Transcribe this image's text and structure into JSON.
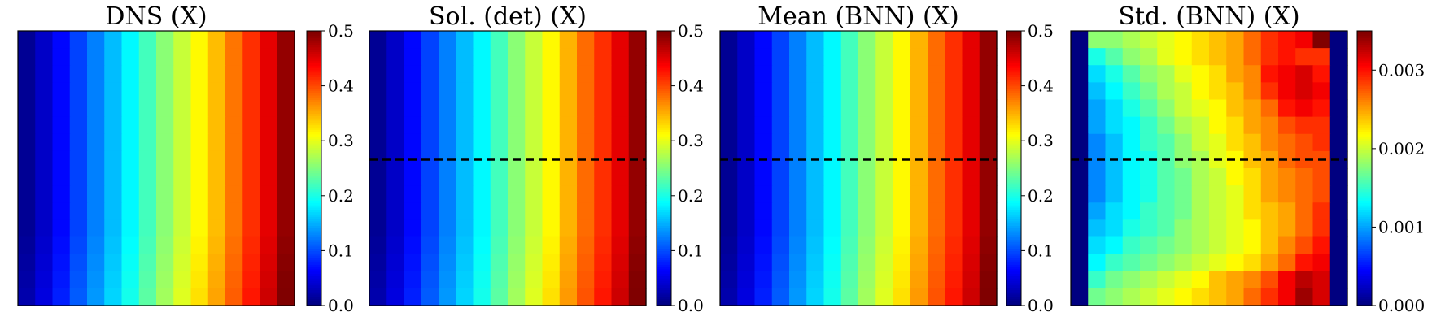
{
  "chart_data": [
    {
      "type": "heatmap",
      "title": "DNS (X)",
      "grid": false,
      "rows": 16,
      "cols": 16,
      "x_values": [
        0.01,
        0.035,
        0.065,
        0.095,
        0.125,
        0.155,
        0.185,
        0.22,
        0.255,
        0.285,
        0.315,
        0.345,
        0.38,
        0.415,
        0.45,
        0.49
      ],
      "row_offsets": [
        0,
        0,
        0,
        0,
        0,
        0,
        0,
        0,
        0,
        0,
        0,
        0,
        0.003,
        0.006,
        0.009,
        0.012
      ],
      "dashed_line_row": null,
      "colorbar": {
        "vmin": 0.0,
        "vmax": 0.5,
        "ticks": [
          "0.0",
          "0.1",
          "0.2",
          "0.3",
          "0.4",
          "0.5"
        ],
        "tick_values": [
          0,
          0.1,
          0.2,
          0.3,
          0.4,
          0.5
        ]
      }
    },
    {
      "type": "heatmap",
      "title": "Sol. (det) (X)",
      "grid": false,
      "rows": 16,
      "cols": 16,
      "x_values": [
        0.01,
        0.035,
        0.065,
        0.095,
        0.125,
        0.155,
        0.185,
        0.22,
        0.255,
        0.285,
        0.315,
        0.35,
        0.385,
        0.415,
        0.45,
        0.49
      ],
      "row_offsets": [
        0,
        0,
        0,
        0,
        0,
        0,
        0,
        0,
        0,
        0,
        0,
        0,
        0.003,
        0.006,
        0.009,
        0.012
      ],
      "dashed_line_row": 7.5,
      "colorbar": {
        "vmin": 0.0,
        "vmax": 0.5,
        "ticks": [
          "0.0",
          "0.1",
          "0.2",
          "0.3",
          "0.4",
          "0.5"
        ],
        "tick_values": [
          0,
          0.1,
          0.2,
          0.3,
          0.4,
          0.5
        ]
      }
    },
    {
      "type": "heatmap",
      "title": "Mean (BNN) (X)",
      "grid": false,
      "rows": 16,
      "cols": 16,
      "x_values": [
        0.01,
        0.035,
        0.065,
        0.095,
        0.125,
        0.155,
        0.185,
        0.22,
        0.255,
        0.285,
        0.315,
        0.35,
        0.385,
        0.415,
        0.45,
        0.49
      ],
      "row_offsets": [
        0,
        0,
        0,
        0,
        0,
        0,
        0,
        0,
        0,
        0,
        0,
        0,
        0.003,
        0.006,
        0.009,
        0.012
      ],
      "dashed_line_row": 7.5,
      "colorbar": {
        "vmin": 0.0,
        "vmax": 0.5,
        "ticks": [
          "0.0",
          "0.1",
          "0.2",
          "0.3",
          "0.4",
          "0.5"
        ],
        "tick_values": [
          0,
          0.1,
          0.2,
          0.3,
          0.4,
          0.5
        ]
      }
    },
    {
      "type": "heatmap",
      "title": "Std. (BNN) (X)",
      "grid": false,
      "rows": 16,
      "cols": 16,
      "values": [
        [
          0.0,
          0.0018,
          0.0018,
          0.0019,
          0.002,
          0.0021,
          0.0022,
          0.0023,
          0.0024,
          0.0025,
          0.0027,
          0.0029,
          0.003,
          0.0031,
          0.0035,
          0.0
        ],
        [
          0.0,
          0.0014,
          0.0016,
          0.0018,
          0.0019,
          0.0021,
          0.0022,
          0.0023,
          0.0024,
          0.0025,
          0.0027,
          0.0029,
          0.003,
          0.0029,
          0.0029,
          0.0
        ],
        [
          0.0,
          0.0012,
          0.0014,
          0.0016,
          0.0018,
          0.0019,
          0.0021,
          0.0022,
          0.0023,
          0.0025,
          0.0026,
          0.003,
          0.0031,
          0.0032,
          0.003,
          0.0
        ],
        [
          0.0,
          0.0011,
          0.0013,
          0.0015,
          0.0017,
          0.0019,
          0.002,
          0.0022,
          0.0023,
          0.0024,
          0.0026,
          0.0029,
          0.0031,
          0.0032,
          0.0031,
          0.0
        ],
        [
          0.0,
          0.001,
          0.0012,
          0.0014,
          0.0016,
          0.0018,
          0.002,
          0.0021,
          0.0022,
          0.0024,
          0.0025,
          0.0027,
          0.003,
          0.0031,
          0.003,
          0.0
        ],
        [
          0.0,
          0.001,
          0.0012,
          0.0013,
          0.0015,
          0.0017,
          0.0019,
          0.002,
          0.0022,
          0.0023,
          0.0025,
          0.0026,
          0.0028,
          0.0029,
          0.0029,
          0.0
        ],
        [
          0.0,
          0.0009,
          0.0011,
          0.0013,
          0.0015,
          0.0016,
          0.0018,
          0.002,
          0.0021,
          0.0023,
          0.0024,
          0.0026,
          0.0027,
          0.0028,
          0.0029,
          0.0
        ],
        [
          0.0,
          0.0009,
          0.0011,
          0.0013,
          0.0014,
          0.0016,
          0.0018,
          0.0019,
          0.0021,
          0.0022,
          0.0024,
          0.0025,
          0.0027,
          0.0028,
          0.0028,
          0.0
        ],
        [
          0.0,
          0.0009,
          0.0011,
          0.0013,
          0.0014,
          0.0016,
          0.0017,
          0.0019,
          0.002,
          0.0022,
          0.0023,
          0.0025,
          0.0026,
          0.0027,
          0.0028,
          0.0
        ],
        [
          0.0,
          0.0009,
          0.0011,
          0.0013,
          0.0014,
          0.0016,
          0.0017,
          0.0019,
          0.002,
          0.0021,
          0.0023,
          0.0025,
          0.0026,
          0.0027,
          0.0028,
          0.0
        ],
        [
          0.0,
          0.001,
          0.0012,
          0.0013,
          0.0015,
          0.0016,
          0.0017,
          0.0019,
          0.002,
          0.0021,
          0.0023,
          0.0024,
          0.0025,
          0.0027,
          0.0029,
          0.0
        ],
        [
          0.0,
          0.0011,
          0.0012,
          0.0014,
          0.0015,
          0.0016,
          0.0018,
          0.0019,
          0.002,
          0.0021,
          0.0022,
          0.0024,
          0.0025,
          0.0027,
          0.0029,
          0.0
        ],
        [
          0.0,
          0.0012,
          0.0013,
          0.0015,
          0.0016,
          0.0017,
          0.0018,
          0.0019,
          0.002,
          0.0021,
          0.0022,
          0.0024,
          0.0026,
          0.0028,
          0.003,
          0.0
        ],
        [
          0.0,
          0.0013,
          0.0015,
          0.0016,
          0.0017,
          0.0018,
          0.0019,
          0.002,
          0.0021,
          0.0022,
          0.0023,
          0.0025,
          0.0027,
          0.003,
          0.0031,
          0.0
        ],
        [
          0.0,
          0.0015,
          0.0017,
          0.0018,
          0.0019,
          0.002,
          0.0021,
          0.0022,
          0.0024,
          0.0025,
          0.0026,
          0.0028,
          0.0031,
          0.0033,
          0.0032,
          0.0
        ],
        [
          0.0,
          0.0017,
          0.0018,
          0.0019,
          0.002,
          0.0021,
          0.0022,
          0.0023,
          0.0024,
          0.0025,
          0.0027,
          0.0029,
          0.0031,
          0.0034,
          0.0032,
          0.0
        ]
      ],
      "dashed_line_row": 7.5,
      "colorbar": {
        "vmin": 0.0,
        "vmax": 0.0035,
        "ticks": [
          "0.000",
          "0.001",
          "0.002",
          "0.003"
        ],
        "tick_values": [
          0,
          0.001,
          0.002,
          0.003
        ]
      }
    }
  ],
  "colors": {
    "dashed_line": "#000000",
    "frame": "#000000"
  },
  "colormap": "jet"
}
